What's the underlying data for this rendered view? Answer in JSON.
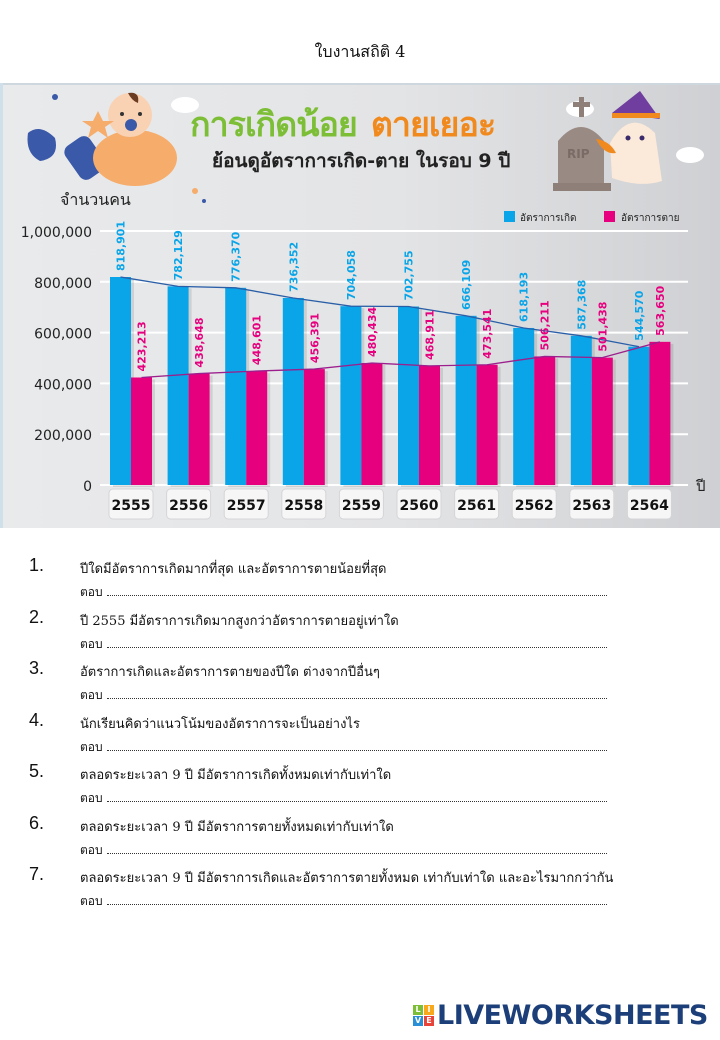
{
  "page": {
    "title": "ใบงานสถิติ 4"
  },
  "infographic": {
    "headline_green": "การเกิดน้อย",
    "headline_orange": "ตายเยอะ",
    "subtitle": "ย้อนดูอัตราการเกิด-ตาย ในรอบ 9 ปี",
    "tombstone_text": "RIP",
    "colors": {
      "births": "#0aa5e8",
      "deaths": "#e6007e",
      "trend_births": "#2a5fa8",
      "trend_deaths": "#9b1f8c",
      "headline_green": "#7dbe37",
      "headline_orange": "#f08a1f"
    }
  },
  "chart_data": {
    "type": "bar",
    "ylabel": "จำนวนคน",
    "xlabel": "ปี",
    "ylim": [
      0,
      1000000
    ],
    "yticks": [
      0,
      200000,
      400000,
      600000,
      800000,
      1000000
    ],
    "ytick_labels": [
      "0",
      "200,000",
      "400,000",
      "600,000",
      "800,000",
      "1,000,000"
    ],
    "grid": true,
    "legend_position": "top-right",
    "categories": [
      "2555",
      "2556",
      "2557",
      "2558",
      "2559",
      "2560",
      "2561",
      "2562",
      "2563",
      "2564"
    ],
    "series": [
      {
        "name": "อัตราการเกิด",
        "color": "#0aa5e8",
        "values": [
          818901,
          782129,
          776370,
          736352,
          704058,
          702755,
          666109,
          618193,
          587368,
          544570
        ],
        "labels": [
          "818,901",
          "782,129",
          "776,370",
          "736,352",
          "704,058",
          "702,755",
          "666,109",
          "618,193",
          "587,368",
          "544,570"
        ]
      },
      {
        "name": "อัตราการตาย",
        "color": "#e6007e",
        "values": [
          423213,
          438648,
          448601,
          456391,
          480434,
          468911,
          473541,
          506211,
          501438,
          563650
        ],
        "labels": [
          "423,213",
          "438,648",
          "448,601",
          "456,391",
          "480,434",
          "468,911",
          "473,541",
          "506,211",
          "501,438",
          "563,650"
        ]
      }
    ]
  },
  "questions": [
    {
      "number": "1.",
      "text": "ปีใดมีอัตราการเกิดมากที่สุด และอัตราการตายน้อยที่สุด",
      "answer_label": "ตอบ"
    },
    {
      "number": "2.",
      "text": "ปี 2555 มีอัตราการเกิดมากสูงกว่าอัตราการตายอยู่เท่าใด",
      "answer_label": "ตอบ"
    },
    {
      "number": "3.",
      "text": "อัตราการเกิดและอัตราการตายของปีใด ต่างจากปีอื่นๆ",
      "answer_label": "ตอบ"
    },
    {
      "number": "4.",
      "text": "นักเรียนคิดว่าแนวโน้มของอัตราการจะเป็นอย่างไร",
      "answer_label": "ตอบ"
    },
    {
      "number": "5.",
      "text": "ตลอดระยะเวลา 9 ปี มีอัตราการเกิดทั้งหมดเท่ากับเท่าใด",
      "answer_label": "ตอบ"
    },
    {
      "number": "6.",
      "text": "ตลอดระยะเวลา 9 ปี มีอัตราการตายทั้งหมดเท่ากับเท่าใด",
      "answer_label": "ตอบ"
    },
    {
      "number": "7.",
      "text": "ตลอดระยะเวลา 9 ปี มีอัตราการเกิดและอัตราการตายทั้งหมด เท่ากับเท่าใด และอะไรมากกว่ากัน",
      "answer_label": "ตอบ"
    }
  ],
  "logo": {
    "blocks": [
      "L",
      "I",
      "V",
      "E"
    ],
    "block_colors": [
      "#7dbe37",
      "#f7a81b",
      "#2a8fd6",
      "#e8443a"
    ],
    "wordmark": "LIVEWORKSHEETS"
  }
}
